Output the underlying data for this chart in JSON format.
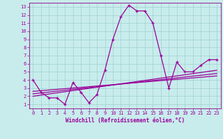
{
  "xlabel": "Windchill (Refroidissement éolien,°C)",
  "background_color": "#c8ecec",
  "grid_color": "#a0d0d0",
  "line_color": "#990099",
  "spine_color": "#993399",
  "xlim": [
    -0.5,
    23.5
  ],
  "ylim": [
    0.5,
    13.5
  ],
  "xticks": [
    0,
    1,
    2,
    3,
    4,
    5,
    6,
    7,
    8,
    9,
    10,
    11,
    12,
    13,
    14,
    15,
    16,
    17,
    18,
    19,
    20,
    21,
    22,
    23
  ],
  "yticks": [
    1,
    2,
    3,
    4,
    5,
    6,
    7,
    8,
    9,
    10,
    11,
    12,
    13
  ],
  "main_x": [
    0,
    1,
    2,
    3,
    4,
    5,
    6,
    7,
    8,
    9,
    10,
    11,
    12,
    13,
    14,
    15,
    16,
    17,
    18,
    19,
    20,
    21,
    22,
    23
  ],
  "main_y": [
    4.0,
    2.5,
    1.8,
    1.8,
    1.0,
    3.7,
    2.5,
    1.2,
    2.2,
    5.2,
    9.0,
    11.8,
    13.2,
    12.5,
    12.5,
    11.0,
    7.0,
    3.0,
    6.2,
    5.0,
    5.0,
    5.8,
    6.5,
    6.5
  ],
  "line1_x": [
    0,
    23
  ],
  "line1_y": [
    2.0,
    5.2
  ],
  "line2_x": [
    0,
    23
  ],
  "line2_y": [
    2.3,
    4.8
  ],
  "line3_x": [
    0,
    23
  ],
  "line3_y": [
    2.6,
    4.5
  ]
}
